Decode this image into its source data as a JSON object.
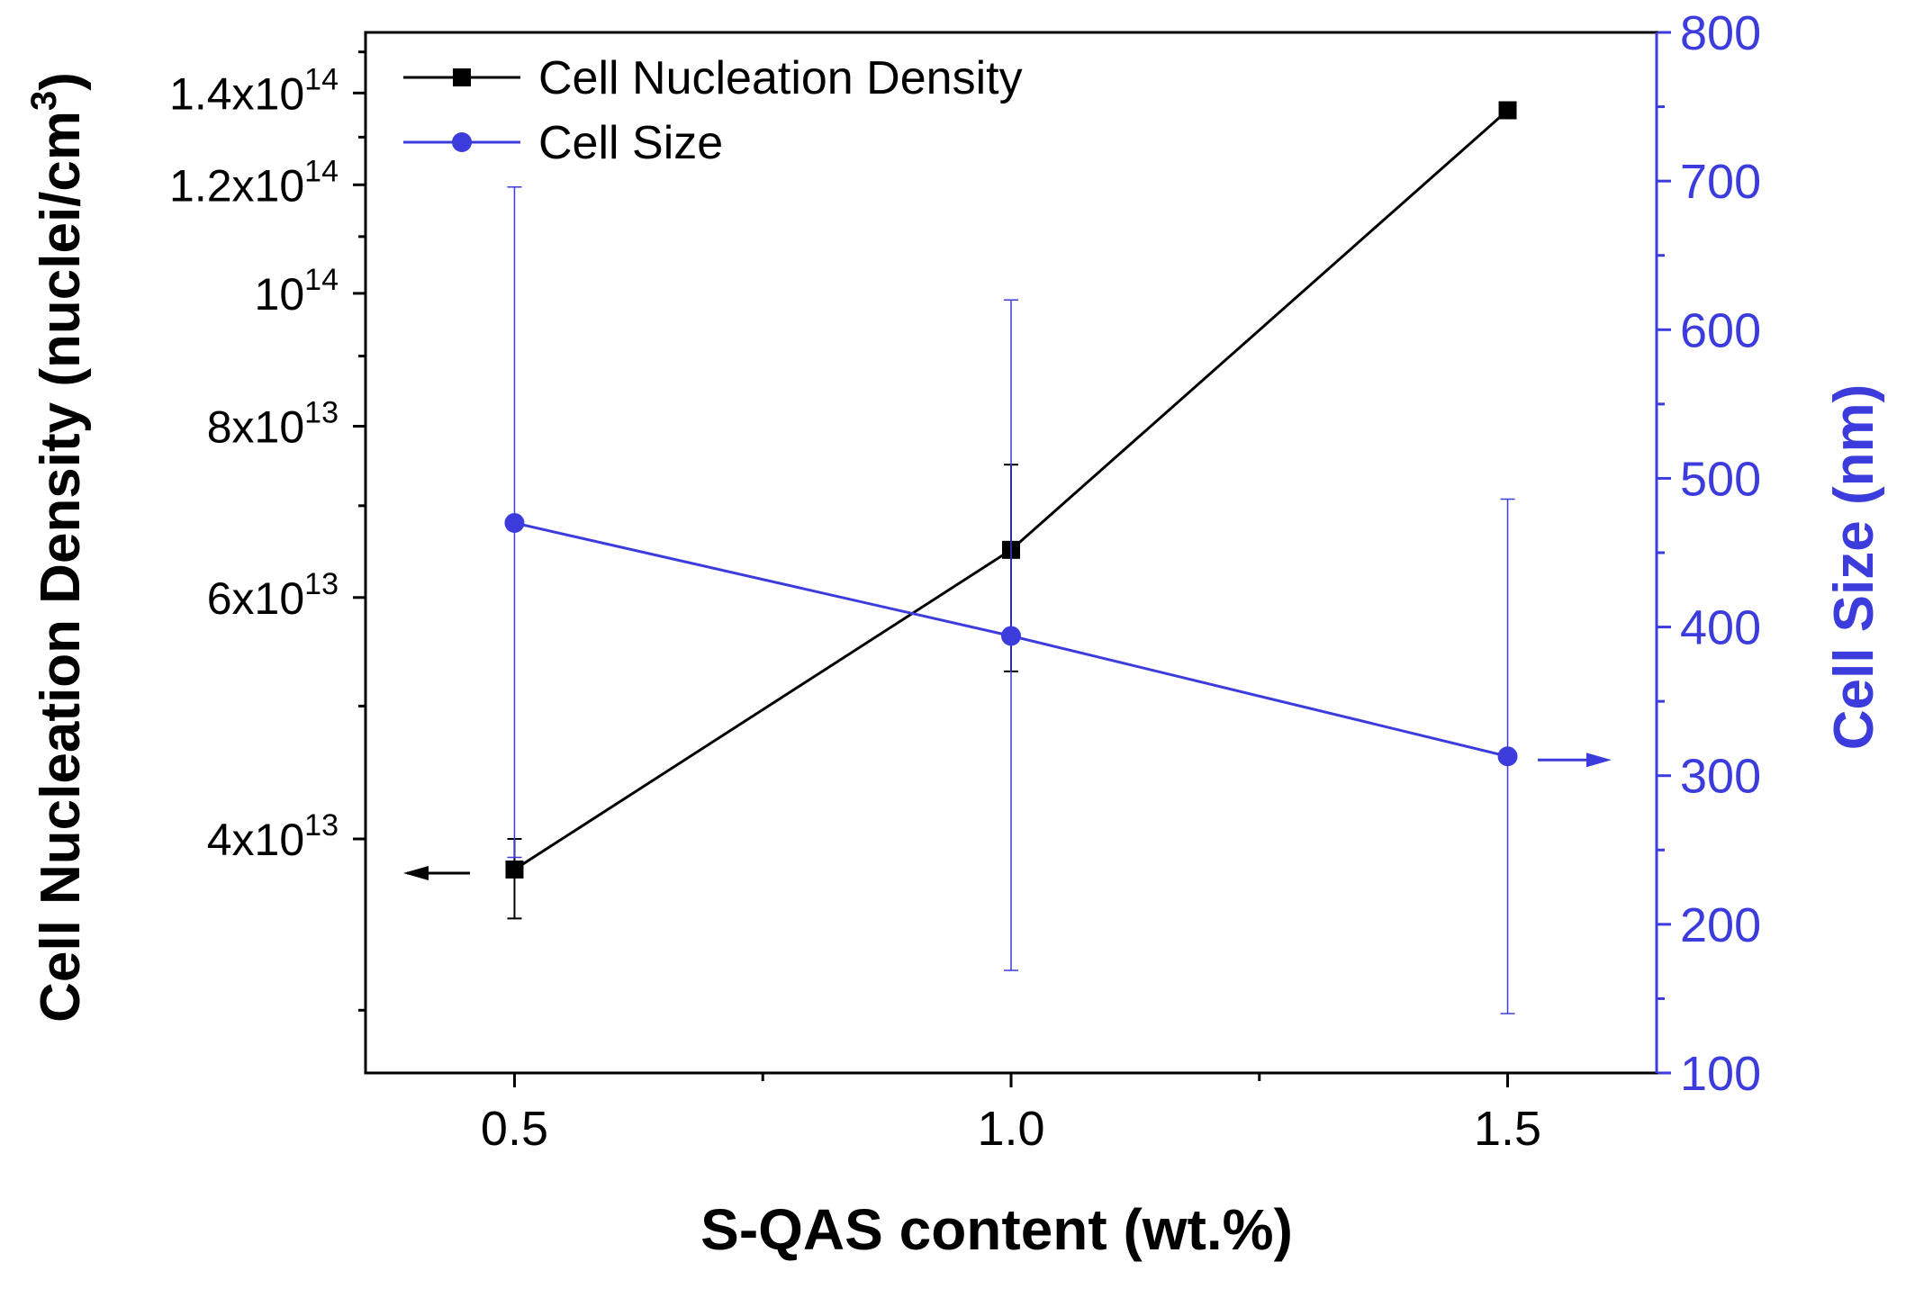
{
  "chart_data": {
    "type": "line",
    "title": "",
    "xlabel": "S-QAS content (wt.%)",
    "x": [
      0.5,
      1.0,
      1.5
    ],
    "xlim": [
      0.35,
      1.65
    ],
    "x_ticks": [
      0.5,
      1.0,
      1.5
    ],
    "x_tick_labels": [
      "0.5",
      "1.0",
      "1.5"
    ],
    "x_minor_ticks": [
      0.75,
      1.25
    ],
    "legend_position": "top-left",
    "colors": {
      "density": "#000000",
      "size": "#3c3cdc",
      "axis": "#000000",
      "right_axis": "#3c3cdc"
    },
    "left_axis": {
      "label_text": "Cell Nucleation Density (nuclei/cm",
      "label_sup": "3",
      "label_close": ")",
      "scale": "log",
      "ylim": [
        27000000000000.0,
        155000000000000.0
      ],
      "ticks": [
        {
          "value": 40000000000000.0,
          "mantissa": "4x10",
          "exp": "13"
        },
        {
          "value": 60000000000000.0,
          "mantissa": "6x10",
          "exp": "13"
        },
        {
          "value": 80000000000000.0,
          "mantissa": "8x10",
          "exp": "13"
        },
        {
          "value": 100000000000000.0,
          "mantissa": "10",
          "exp": "14"
        },
        {
          "value": 120000000000000.0,
          "mantissa": "1.2x10",
          "exp": "14"
        },
        {
          "value": 140000000000000.0,
          "mantissa": "1.4x10",
          "exp": "14"
        }
      ],
      "minor_ticks": [
        30000000000000.0,
        50000000000000.0,
        70000000000000.0,
        90000000000000.0,
        110000000000000.0,
        130000000000000.0,
        150000000000000.0
      ]
    },
    "right_axis": {
      "label": "Cell Size (nm)",
      "scale": "linear",
      "ylim": [
        100,
        800
      ],
      "ticks": [
        100,
        200,
        300,
        400,
        500,
        600,
        700,
        800
      ],
      "tick_labels": [
        "100",
        "200",
        "300",
        "400",
        "500",
        "600",
        "700",
        "800"
      ],
      "minor_ticks": [
        150,
        250,
        350,
        450,
        550,
        650,
        750
      ]
    },
    "series": [
      {
        "name": "Cell Nucleation Density",
        "axis": "left",
        "marker": "square",
        "values": [
          38000000000000.0,
          65000000000000.0,
          136000000000000.0
        ],
        "error_low": [
          35000000000000.0,
          53000000000000.0,
          null
        ],
        "error_high": [
          40000000000000.0,
          75000000000000.0,
          null
        ]
      },
      {
        "name": "Cell Size",
        "axis": "right",
        "marker": "circle",
        "values": [
          470,
          394,
          313
        ],
        "error_low": [
          245,
          169,
          140
        ],
        "error_high": [
          696,
          620,
          486
        ]
      }
    ],
    "annotations": [
      {
        "text": "arrow-left",
        "points_to": "left-axis",
        "series": "Cell Nucleation Density"
      },
      {
        "text": "arrow-right",
        "points_to": "right-axis",
        "series": "Cell Size"
      }
    ]
  }
}
